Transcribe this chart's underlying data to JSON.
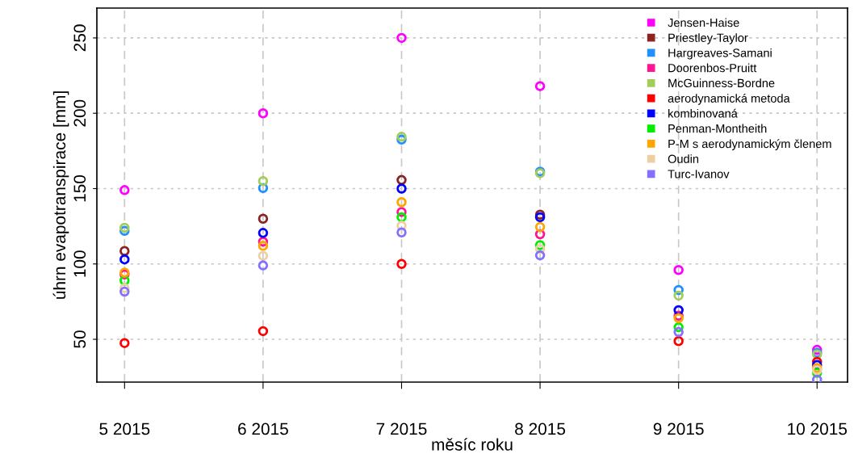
{
  "chart_data": {
    "type": "scatter",
    "xlabel": "měsíc roku",
    "ylabel": "úhrn evapotranspirace [mm]",
    "categories": [
      "5 2015",
      "6 2015",
      "7 2015",
      "8 2015",
      "9 2015",
      "10 2015"
    ],
    "ylim": [
      21.6,
      269.8
    ],
    "yticks": [
      50,
      100,
      150,
      200,
      250
    ],
    "grid": true,
    "legend": "top right",
    "marker": "circle",
    "series": [
      {
        "name": "Jensen-Haise",
        "color": "#ff00ff",
        "values": [
          149,
          200,
          250,
          218,
          96,
          43
        ]
      },
      {
        "name": "Priestley-Taylor",
        "color": "#8b2323",
        "values": [
          108.6,
          130,
          155.7,
          132.7,
          null,
          null
        ]
      },
      {
        "name": "Hargreaves-Samani",
        "color": "#1e90ff",
        "values": [
          122,
          150.4,
          182.5,
          161.3,
          82.7,
          41
        ]
      },
      {
        "name": "Doorenbos-Pruitt",
        "color": "#ff1493",
        "values": [
          93,
          114.8,
          134.5,
          119.7,
          65.7,
          null
        ]
      },
      {
        "name": "McGuinness-Bordne",
        "color": "#a2cd5a",
        "values": [
          124,
          155,
          184.4,
          160.2,
          79,
          40
        ]
      },
      {
        "name": "aerodynamická metoda",
        "color": "#ff0000",
        "values": [
          47.5,
          55.4,
          100,
          null,
          48.8,
          35
        ]
      },
      {
        "name": "kombinovaná",
        "color": "#0000ff",
        "values": [
          103,
          120.6,
          150,
          131,
          69.3,
          33
        ]
      },
      {
        "name": "Penman-Montheith",
        "color": "#00ee00",
        "values": [
          89,
          null,
          131,
          112.5,
          58,
          27.7
        ]
      },
      {
        "name": "P-M s aerodynamickým členem",
        "color": "#ffa500",
        "values": [
          94.3,
          112,
          141,
          124.5,
          64,
          31
        ]
      },
      {
        "name": "Oudin",
        "color": "#eecfa1",
        "values": [
          84,
          105.4,
          125.4,
          109.9,
          null,
          29.5
        ]
      },
      {
        "name": "Turc-Ivanov",
        "color": "#8470ff",
        "values": [
          81.6,
          99,
          120.9,
          105.7,
          54.8,
          23.2
        ]
      }
    ]
  }
}
